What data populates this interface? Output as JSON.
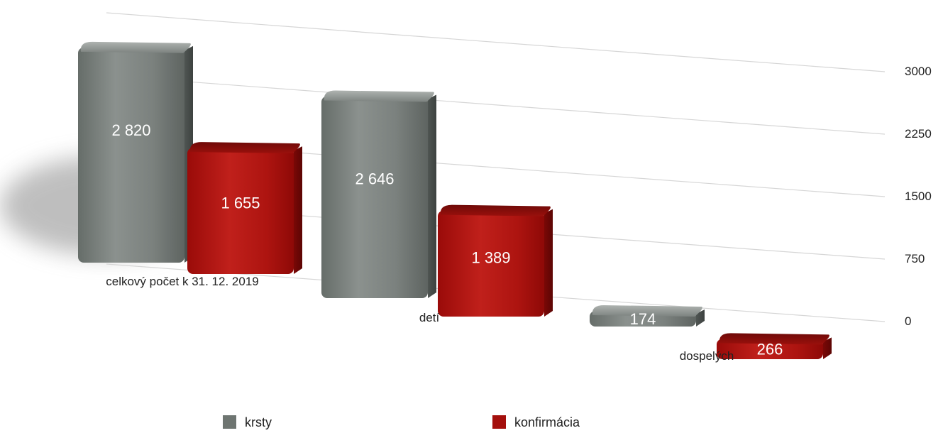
{
  "chart_data": {
    "type": "bar",
    "title": "",
    "xlabel": "",
    "ylabel": "",
    "categories": [
      "celkový počet k 31. 12. 2019",
      "detí",
      "dospelých"
    ],
    "series": [
      {
        "name": "krsty",
        "color": "#6e7571",
        "values": [
          2820,
          2646,
          174
        ],
        "labels": [
          "2 820",
          "2 646",
          "174"
        ]
      },
      {
        "name": "konfirmácia",
        "color": "#a40f0c",
        "values": [
          1655,
          1389,
          266
        ],
        "labels": [
          "1 655",
          "1 389",
          "266"
        ]
      }
    ],
    "ylim": [
      0,
      3000
    ],
    "yticks": [
      0,
      750,
      1500,
      2250,
      3000
    ],
    "ytick_labels": [
      "0",
      "750",
      "1500",
      "2250",
      "3000"
    ],
    "grid": true,
    "legend": "bottom",
    "style": "3d-perspective"
  }
}
